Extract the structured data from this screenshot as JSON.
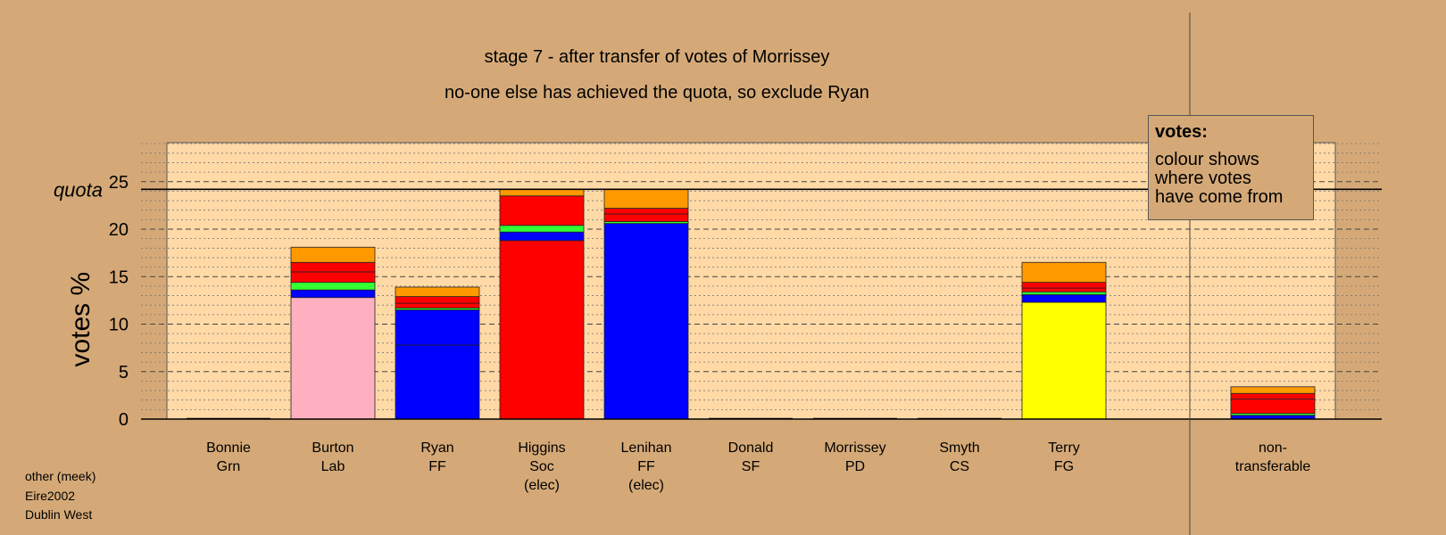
{
  "chart_data": {
    "type": "bar",
    "stacked": true,
    "title": "stage 7 - after transfer of votes of Morrissey",
    "subtitle": "no-one else has achieved the quota, so exclude Ryan",
    "ylabel": "votes %",
    "ylim": [
      0,
      29
    ],
    "yticks": [
      0,
      5,
      10,
      15,
      20,
      25
    ],
    "quota": 24.2,
    "quota_label": "quota",
    "grid": true,
    "categories": [
      [
        "Bonnie",
        "Grn"
      ],
      [
        "Burton",
        "Lab"
      ],
      [
        "Ryan",
        "FF"
      ],
      [
        "Higgins",
        "Soc",
        "(elec)"
      ],
      [
        "Lenihan",
        "FF",
        "(elec)"
      ],
      [
        "Donald",
        "SF"
      ],
      [
        "Morrissey",
        "PD"
      ],
      [
        "Smyth",
        "CS"
      ],
      [
        "Terry",
        "FG"
      ],
      [
        "non-",
        "transferable"
      ]
    ],
    "stacks": [
      [],
      [
        {
          "color": "#ffb0c0",
          "value": 12.8
        },
        {
          "color": "#0000ff",
          "value": 0.8
        },
        {
          "color": "#33ff33",
          "value": 0.8
        },
        {
          "color": "#ff0000",
          "value": 1.1
        },
        {
          "color": "#ff0000",
          "value": 1.0
        },
        {
          "color": "#ff9900",
          "value": 1.6
        }
      ],
      [
        {
          "color": "#0000ff",
          "value": 7.8
        },
        {
          "color": "#0000ff",
          "value": 3.7
        },
        {
          "color": "#33ff33",
          "value": 0.2
        },
        {
          "color": "#ff0000",
          "value": 0.5
        },
        {
          "color": "#ff0000",
          "value": 0.7
        },
        {
          "color": "#ff9900",
          "value": 1.0
        }
      ],
      [
        {
          "color": "#ff0000",
          "value": 18.8
        },
        {
          "color": "#0000ff",
          "value": 0.9
        },
        {
          "color": "#33ff33",
          "value": 0.7
        },
        {
          "color": "#ff0000",
          "value": 3.1
        },
        {
          "color": "#ff9900",
          "value": 0.7
        }
      ],
      [
        {
          "color": "#0000ff",
          "value": 20.6
        },
        {
          "color": "#33ff33",
          "value": 0.2
        },
        {
          "color": "#ff0000",
          "value": 0.8
        },
        {
          "color": "#ff0000",
          "value": 0.6
        },
        {
          "color": "#ff9900",
          "value": 2.0
        }
      ],
      [],
      [],
      [],
      [
        {
          "color": "#ffff00",
          "value": 12.3
        },
        {
          "color": "#0000ff",
          "value": 0.8
        },
        {
          "color": "#33ff33",
          "value": 0.3
        },
        {
          "color": "#ff0000",
          "value": 0.4
        },
        {
          "color": "#ff0000",
          "value": 0.6
        },
        {
          "color": "#ff9900",
          "value": 2.1
        }
      ],
      [
        {
          "color": "#0000ff",
          "value": 0.4
        },
        {
          "color": "#33ff33",
          "value": 0.2
        },
        {
          "color": "#ff0000",
          "value": 1.5
        },
        {
          "color": "#ff0000",
          "value": 0.6
        },
        {
          "color": "#ff9900",
          "value": 0.7
        }
      ]
    ]
  },
  "legend": {
    "title": "votes:",
    "text": "colour shows\nwhere votes\nhave come from"
  },
  "footer": {
    "line1": "other (meek)",
    "line2": "Eire2002",
    "line3": "Dublin West"
  },
  "colors": {
    "background": "#d5a977",
    "plot_area": "#ffd9a6"
  }
}
